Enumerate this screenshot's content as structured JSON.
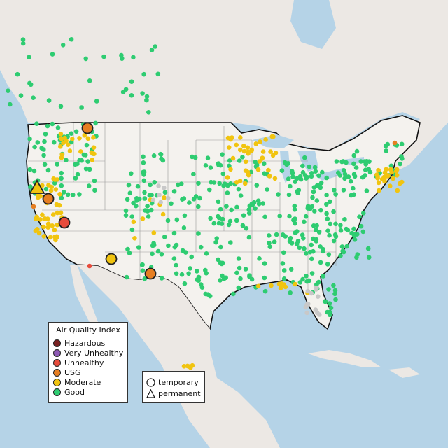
{
  "legend": {
    "title": "Air Quality Index",
    "categories": [
      {
        "label": "Hazardous",
        "color": "#7a2222"
      },
      {
        "label": "Very Unhealthy",
        "color": "#8e5ab5"
      },
      {
        "label": "Unhealthy",
        "color": "#e74c3c"
      },
      {
        "label": "USG",
        "color": "#e67e22"
      },
      {
        "label": "Moderate",
        "color": "#f1c40f"
      },
      {
        "label": "Good",
        "color": "#2ecc71"
      }
    ]
  },
  "monitor_type_legend": {
    "items": [
      {
        "label": "temporary",
        "shape": "circle"
      },
      {
        "label": "permanent",
        "shape": "triangle"
      }
    ]
  },
  "colors": {
    "water": "#b5d3e7",
    "land": "#ece8e4",
    "us_land": "#f4f2ee",
    "no_data": "#c8c8c8"
  }
}
